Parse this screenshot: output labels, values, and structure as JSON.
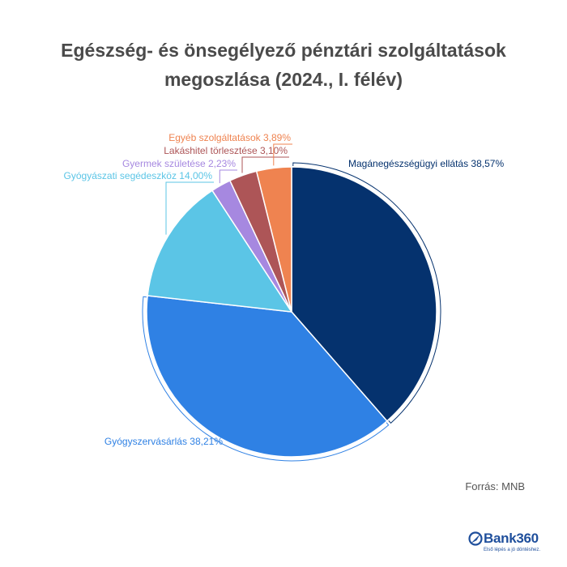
{
  "chart_data": {
    "type": "pie",
    "title": [
      "Egészség- és önsegélyező pénztári szolgáltatások",
      "megoszlása (2024., I. félév)"
    ],
    "slices": [
      {
        "label": "Magánegészségügyi ellátás 38,57%",
        "value": 38.57,
        "color": "#05326e"
      },
      {
        "label": "Gyógyszervásárlás 38,21%",
        "value": 38.21,
        "color": "#2f81e4"
      },
      {
        "label": "Gyógyászati segédeszköz 14,00%",
        "value": 14.0,
        "color": "#5bc5e6"
      },
      {
        "label": "Gyermek születése 2,23%",
        "value": 2.23,
        "color": "#a688e0"
      },
      {
        "label": "Lakáshitel törlesztése 3,10%",
        "value": 3.1,
        "color": "#ad5557"
      },
      {
        "label": "Egyéb szolgáltatások 3,89%",
        "value": 3.89,
        "color": "#ef8350"
      }
    ],
    "start_angle": "12 o'clock",
    "direction": "clockwise",
    "legend": "none"
  },
  "source": "Forrás: MNB",
  "logo": {
    "name": "Bank360",
    "tagline": "Első lépés a jó döntéshez.",
    "color": "#1f4f9c"
  }
}
